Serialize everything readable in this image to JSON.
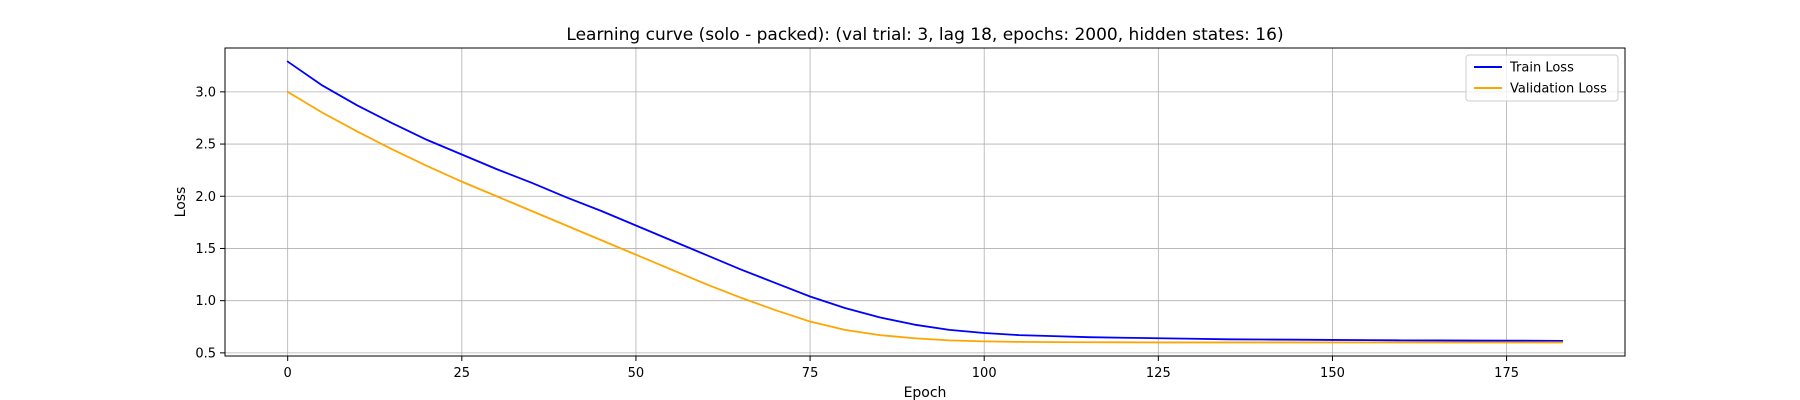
{
  "chart_data": {
    "type": "line",
    "title": "Learning curve (solo - packed): (val trial: 3, lag 18, epochs: 2000, hidden states: 16)",
    "xlabel": "Epoch",
    "ylabel": "Loss",
    "xlim": [
      -9,
      192
    ],
    "ylim": [
      0.47,
      3.42
    ],
    "xticks": [
      0,
      25,
      50,
      75,
      100,
      125,
      150,
      175
    ],
    "yticks": [
      0.5,
      1.0,
      1.5,
      2.0,
      2.5,
      3.0
    ],
    "xtick_labels": [
      "0",
      "25",
      "50",
      "75",
      "100",
      "125",
      "150",
      "175"
    ],
    "ytick_labels": [
      "0.5",
      "1.0",
      "1.5",
      "2.0",
      "2.5",
      "3.0"
    ],
    "grid": true,
    "legend_position": "top-right",
    "series": [
      {
        "name": "Train Loss",
        "color": "#0000ff",
        "x": [
          0,
          5,
          10,
          15,
          20,
          25,
          30,
          35,
          40,
          45,
          50,
          55,
          60,
          65,
          70,
          75,
          80,
          85,
          90,
          95,
          100,
          105,
          110,
          115,
          120,
          125,
          130,
          135,
          140,
          145,
          150,
          155,
          160,
          165,
          170,
          175,
          180,
          183
        ],
        "y": [
          3.29,
          3.06,
          2.87,
          2.7,
          2.54,
          2.4,
          2.26,
          2.13,
          1.99,
          1.86,
          1.72,
          1.58,
          1.44,
          1.3,
          1.17,
          1.04,
          0.93,
          0.84,
          0.77,
          0.72,
          0.69,
          0.67,
          0.66,
          0.65,
          0.645,
          0.64,
          0.635,
          0.63,
          0.628,
          0.626,
          0.624,
          0.622,
          0.62,
          0.619,
          0.618,
          0.617,
          0.616,
          0.615
        ]
      },
      {
        "name": "Validation Loss",
        "color": "#ffa500",
        "x": [
          0,
          5,
          10,
          15,
          20,
          25,
          30,
          35,
          40,
          45,
          50,
          55,
          60,
          65,
          70,
          75,
          80,
          85,
          90,
          95,
          100,
          105,
          110,
          115,
          120,
          125,
          130,
          135,
          140,
          145,
          150,
          155,
          160,
          165,
          170,
          175,
          180,
          183
        ],
        "y": [
          3.0,
          2.8,
          2.62,
          2.45,
          2.29,
          2.14,
          2.0,
          1.86,
          1.72,
          1.58,
          1.44,
          1.3,
          1.16,
          1.03,
          0.91,
          0.8,
          0.72,
          0.67,
          0.64,
          0.62,
          0.61,
          0.605,
          0.603,
          0.602,
          0.601,
          0.6,
          0.6,
          0.6,
          0.6,
          0.6,
          0.6,
          0.6,
          0.6,
          0.6,
          0.6,
          0.6,
          0.6,
          0.6
        ]
      }
    ]
  }
}
